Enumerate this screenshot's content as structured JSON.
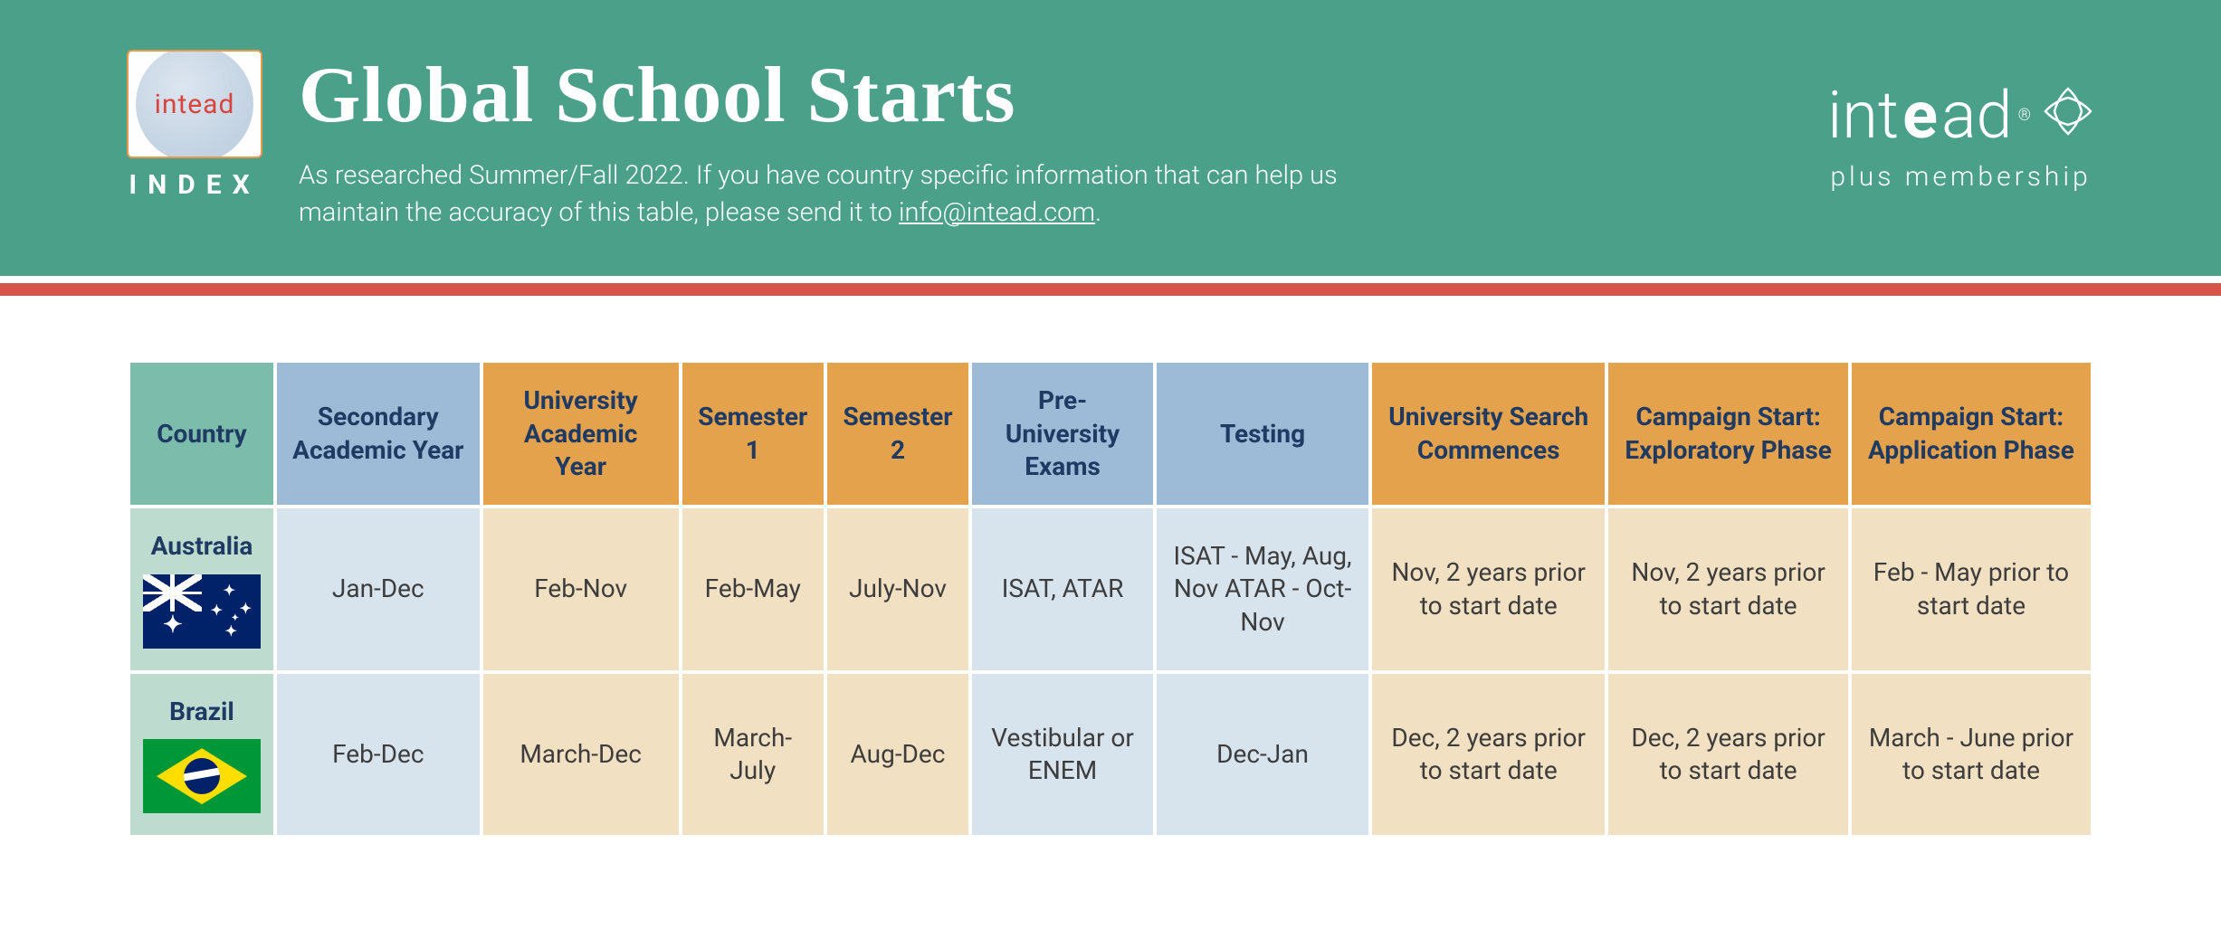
{
  "header": {
    "logo_text": "intead",
    "index_label": "INDEX",
    "title": "Global School Starts",
    "subtitle_prefix": "As researched Summer/Fall 2022. If you have country specific information that can help us maintain the accuracy of this table, please send it to ",
    "subtitle_link": "info@intead.com",
    "subtitle_suffix": ".",
    "brand_prefix": "int",
    "brand_bold": "e",
    "brand_suffix": "ad",
    "tagline": "plus membership"
  },
  "colors": {
    "header_bg": "#4ba08a",
    "divider": "#d9534a",
    "h_teal": "#7cbcab",
    "h_blue": "#9dbbd6",
    "h_orange": "#e3a24b",
    "cell_teal": "#bedbd0",
    "cell_blue": "#d7e3ed",
    "cell_orange": "#f2e0c2",
    "text_dark": "#1f3a63"
  },
  "table": {
    "columns": [
      {
        "label": "Country",
        "style": "teal"
      },
      {
        "label": "Secondary Academic Year",
        "style": "blue"
      },
      {
        "label": "University Academic Year",
        "style": "orange"
      },
      {
        "label": "Semester 1",
        "style": "orange"
      },
      {
        "label": "Semester 2",
        "style": "orange"
      },
      {
        "label": "Pre-University Exams",
        "style": "blue"
      },
      {
        "label": "Testing",
        "style": "blue"
      },
      {
        "label": "University Search Commences",
        "style": "orange"
      },
      {
        "label": "Campaign Start: Exploratory Phase",
        "style": "orange"
      },
      {
        "label": "Campaign Start: Application Phase",
        "style": "orange"
      }
    ],
    "rows": [
      {
        "country": "Australia",
        "flag": "au",
        "cells": [
          "Jan-Dec",
          "Feb-Nov",
          "Feb-May",
          "July-Nov",
          "ISAT, ATAR",
          "ISAT - May, Aug, Nov ATAR - Oct-Nov",
          "Nov, 2 years prior to start date",
          "Nov, 2 years prior to start date",
          "Feb - May prior to start date"
        ]
      },
      {
        "country": "Brazil",
        "flag": "br",
        "cells": [
          "Feb-Dec",
          "March-Dec",
          "March-July",
          "Aug-Dec",
          "Vestibular or ENEM",
          "Dec-Jan",
          "Dec, 2 years prior to start date",
          "Dec, 2 years prior to start date",
          "March - June prior to start date"
        ]
      }
    ],
    "column_styles": [
      "teal",
      "blue",
      "orange",
      "orange",
      "orange",
      "blue",
      "blue",
      "orange",
      "orange",
      "orange"
    ]
  }
}
